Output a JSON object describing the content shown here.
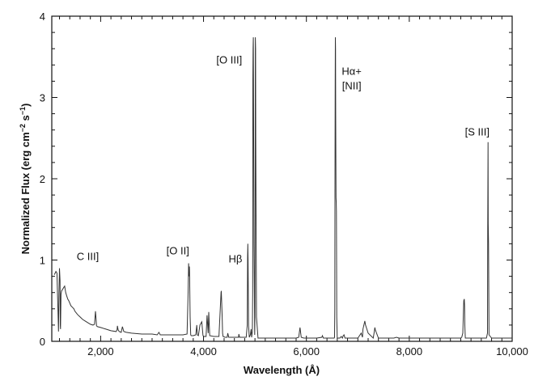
{
  "chart_data": {
    "type": "line",
    "title": "",
    "xlabel": "Wavelength (Å)",
    "ylabel": "Normalized Flux (erg cm",
    "ylabel_sup1": "−2",
    "ylabel_mid": " s",
    "ylabel_sup2": "−1",
    "ylabel_end": ")",
    "xlim": [
      1050,
      10000
    ],
    "ylim": [
      0,
      4
    ],
    "x_ticks": [
      2000,
      4000,
      6000,
      8000,
      10000
    ],
    "x_tick_labels": [
      "2,000",
      "4,000",
      "6,000",
      "8,000",
      "10,000"
    ],
    "y_ticks": [
      0,
      1,
      2,
      3,
      4
    ],
    "y_tick_labels": [
      "0",
      "1",
      "2",
      "3",
      "4"
    ],
    "grid": false,
    "line_color": "#333333",
    "annotations": [
      {
        "label": "C III]",
        "x": 1750,
        "y": 1.0
      },
      {
        "label": "[O II]",
        "x": 3500,
        "y": 1.07
      },
      {
        "label": "Hβ",
        "x": 4620,
        "y": 0.97
      },
      {
        "label": "[O III]",
        "x": 4500,
        "y": 3.42
      },
      {
        "label": "Hα+",
        "x": 6880,
        "y": 3.28
      },
      {
        "label": "[NII]",
        "x": 6880,
        "y": 3.1
      },
      {
        "label": "[S III]",
        "x": 9320,
        "y": 2.53
      }
    ],
    "series": [
      {
        "x": [
          1100,
          1130,
          1150,
          1170,
          1180,
          1190,
          1200,
          1210,
          1215,
          1220,
          1230,
          1240,
          1260,
          1280,
          1300,
          1320,
          1340,
          1360,
          1380,
          1400,
          1420,
          1450,
          1480,
          1500,
          1550,
          1600,
          1650,
          1700,
          1750,
          1800,
          1850,
          1880,
          1900,
          1910,
          1920,
          1940,
          2000,
          2100,
          2200,
          2300,
          2320,
          2326,
          2340,
          2360,
          2400,
          2423,
          2450,
          2500,
          2600,
          2800,
          3000,
          3100,
          3133,
          3160,
          3200,
          3400,
          3600,
          3680,
          3700,
          3710,
          3720,
          3726,
          3729,
          3733,
          3740,
          3750,
          3760,
          3800,
          3850,
          3869,
          3880,
          3900,
          3930,
          3967,
          3990,
          4010,
          4050,
          4069,
          4090,
          4101,
          4120,
          4200,
          4300,
          4340,
          4345,
          4363,
          4370,
          4380,
          4420,
          4460,
          4471,
          4490,
          4550,
          4600,
          4680,
          4686,
          4700,
          4740,
          4800,
          4830,
          4850,
          4856,
          4861,
          4866,
          4875,
          4890,
          4910,
          4925,
          4935,
          4950,
          4955,
          4959,
          4963,
          4968,
          4980,
          4995,
          5000,
          5003,
          5007,
          5012,
          5016,
          5030,
          5060,
          5100,
          5200,
          5400,
          5600,
          5800,
          5850,
          5876,
          5900,
          5950,
          6000,
          6200,
          6300,
          6312,
          6330,
          6360,
          6400,
          6500,
          6540,
          6548,
          6552,
          6556,
          6560,
          6563,
          6566,
          6570,
          6575,
          6580,
          6583,
          6586,
          6590,
          6600,
          6650,
          6678,
          6700,
          6716,
          6731,
          6750,
          6800,
          6900,
          7000,
          7065,
          7090,
          7100,
          7136,
          7150,
          7200,
          7300,
          7320,
          7330,
          7340,
          7400,
          7500,
          7600,
          7700,
          7751,
          7800,
          8000,
          8200,
          8500,
          8800,
          9000,
          9020,
          9040,
          9060,
          9069,
          9075,
          9080,
          9090,
          9150,
          9300,
          9450,
          9500,
          9520,
          9525,
          9531,
          9535,
          9540,
          9550,
          9600,
          9700,
          9800,
          9900,
          10000
        ],
        "y": [
          0.82,
          0.86,
          0.84,
          0.4,
          0.12,
          0.6,
          0.9,
          0.75,
          0.2,
          0.15,
          0.58,
          0.62,
          0.64,
          0.66,
          0.68,
          0.6,
          0.56,
          0.52,
          0.5,
          0.47,
          0.44,
          0.42,
          0.4,
          0.37,
          0.33,
          0.3,
          0.27,
          0.25,
          0.23,
          0.21,
          0.2,
          0.21,
          0.37,
          0.28,
          0.19,
          0.18,
          0.17,
          0.15,
          0.13,
          0.12,
          0.14,
          0.19,
          0.14,
          0.12,
          0.11,
          0.18,
          0.12,
          0.11,
          0.1,
          0.09,
          0.09,
          0.08,
          0.11,
          0.08,
          0.08,
          0.08,
          0.08,
          0.09,
          0.6,
          0.96,
          0.8,
          0.92,
          0.85,
          0.6,
          0.3,
          0.08,
          0.07,
          0.07,
          0.08,
          0.2,
          0.08,
          0.07,
          0.2,
          0.24,
          0.07,
          0.06,
          0.06,
          0.32,
          0.1,
          0.36,
          0.07,
          0.06,
          0.06,
          0.6,
          0.62,
          0.3,
          0.1,
          0.06,
          0.05,
          0.05,
          0.1,
          0.05,
          0.05,
          0.05,
          0.05,
          0.09,
          0.05,
          0.05,
          0.05,
          0.05,
          0.2,
          1.02,
          1.2,
          1.0,
          0.2,
          0.05,
          0.08,
          0.15,
          0.05,
          0.12,
          0.6,
          3.2,
          3.6,
          3.74,
          1.2,
          0.08,
          0.3,
          1.5,
          3.74,
          3.6,
          2.5,
          0.3,
          0.04,
          0.04,
          0.04,
          0.04,
          0.04,
          0.04,
          0.05,
          0.17,
          0.05,
          0.04,
          0.04,
          0.04,
          0.05,
          0.07,
          0.04,
          0.04,
          0.04,
          0.04,
          0.04,
          0.05,
          0.4,
          1.8,
          3.2,
          3.74,
          3.6,
          2.8,
          1.77,
          1.7,
          1.6,
          1.0,
          0.3,
          0.04,
          0.04,
          0.06,
          0.04,
          0.07,
          0.08,
          0.04,
          0.04,
          0.04,
          0.04,
          0.1,
          0.05,
          0.15,
          0.25,
          0.2,
          0.1,
          0.04,
          0.12,
          0.17,
          0.14,
          0.04,
          0.04,
          0.04,
          0.04,
          0.05,
          0.04,
          0.04,
          0.04,
          0.04,
          0.04,
          0.04,
          0.05,
          0.1,
          0.5,
          0.52,
          0.44,
          0.2,
          0.04,
          0.04,
          0.04,
          0.04,
          0.04,
          0.1,
          1.4,
          2.45,
          1.45,
          1.2,
          0.08,
          0.04,
          0.04,
          0.04,
          0.04,
          0.04
        ]
      }
    ]
  }
}
